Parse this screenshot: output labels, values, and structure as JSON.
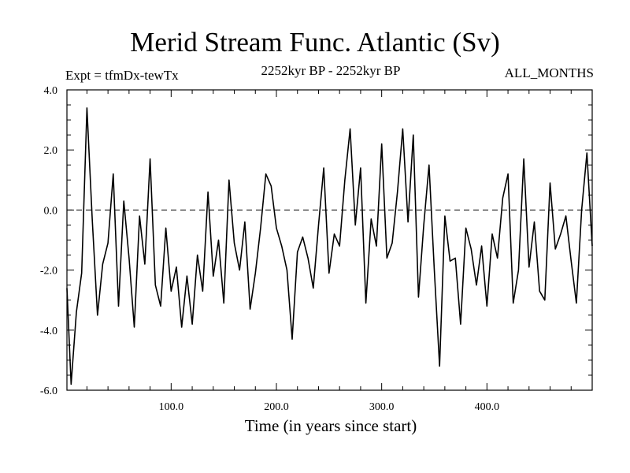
{
  "title": "Merid Stream Func. Atlantic (Sv)",
  "subtitle_left": "Expt = tfmDx-tewTx",
  "subtitle_center": "2252kyr BP - 2252kyr BP",
  "subtitle_right": "ALL_MONTHS",
  "chart_data": {
    "type": "line",
    "title": "Merid Stream Func. Atlantic (Sv)",
    "xlabel": "Time (in years since start)",
    "ylabel": "",
    "xlim": [
      1,
      500
    ],
    "ylim": [
      -6.0,
      4.0
    ],
    "x_ticks": [
      100.0,
      200.0,
      300.0,
      400.0
    ],
    "x_tick_labels": [
      "100.0",
      "200.0",
      "300.0",
      "400.0"
    ],
    "y_ticks": [
      -6.0,
      -4.0,
      -2.0,
      0.0,
      2.0,
      4.0
    ],
    "y_tick_labels": [
      "-6.0",
      "-4.0",
      "-2.0",
      "0.0",
      "2.0",
      "4.0"
    ],
    "zero_line": {
      "y": 0.0,
      "style": "dashed"
    },
    "grid": false,
    "series": [
      {
        "color": "#000000",
        "x": [
          1,
          5,
          10,
          15,
          20,
          25,
          30,
          35,
          40,
          45,
          50,
          55,
          60,
          65,
          70,
          75,
          80,
          85,
          90,
          95,
          100,
          105,
          110,
          115,
          120,
          125,
          130,
          135,
          140,
          145,
          150,
          155,
          160,
          165,
          170,
          175,
          180,
          185,
          190,
          195,
          200,
          205,
          210,
          215,
          220,
          225,
          230,
          235,
          240,
          245,
          250,
          255,
          260,
          265,
          270,
          275,
          280,
          285,
          290,
          295,
          300,
          305,
          310,
          315,
          320,
          325,
          330,
          335,
          340,
          345,
          350,
          355,
          360,
          365,
          370,
          375,
          380,
          385,
          390,
          395,
          400,
          405,
          410,
          415,
          420,
          425,
          430,
          435,
          440,
          445,
          450,
          455,
          460,
          465,
          470,
          475,
          480,
          485,
          490,
          495,
          500
        ],
        "values": [
          -2.6,
          -5.8,
          -3.4,
          -2.1,
          3.4,
          -0.3,
          -3.5,
          -1.8,
          -1.1,
          1.2,
          -3.2,
          0.3,
          -1.6,
          -3.9,
          -0.2,
          -1.8,
          1.7,
          -2.5,
          -3.2,
          -0.6,
          -2.7,
          -1.9,
          -3.9,
          -2.2,
          -3.8,
          -1.5,
          -2.7,
          0.6,
          -2.2,
          -1.0,
          -3.1,
          1.0,
          -1.1,
          -2.0,
          -0.4,
          -3.3,
          -2.1,
          -0.6,
          1.2,
          0.8,
          -0.6,
          -1.2,
          -2.0,
          -4.3,
          -1.4,
          -0.9,
          -1.6,
          -2.6,
          -0.5,
          1.4,
          -2.1,
          -0.8,
          -1.2,
          1.0,
          2.7,
          -0.5,
          1.4,
          -3.1,
          -0.3,
          -1.2,
          2.2,
          -1.6,
          -1.1,
          0.6,
          2.7,
          -0.4,
          2.5,
          -2.9,
          -0.5,
          1.5,
          -2.0,
          -5.2,
          -0.2,
          -1.7,
          -1.6,
          -3.8,
          -0.6,
          -1.3,
          -2.5,
          -1.2,
          -3.2,
          -0.8,
          -1.6,
          0.4,
          1.2,
          -3.1,
          -2.0,
          1.7,
          -1.9,
          -0.4,
          -2.7,
          -3.0,
          0.9,
          -1.3,
          -0.8,
          -0.2,
          -1.7,
          -3.1,
          0.0,
          1.9,
          -1.2
        ]
      }
    ]
  }
}
